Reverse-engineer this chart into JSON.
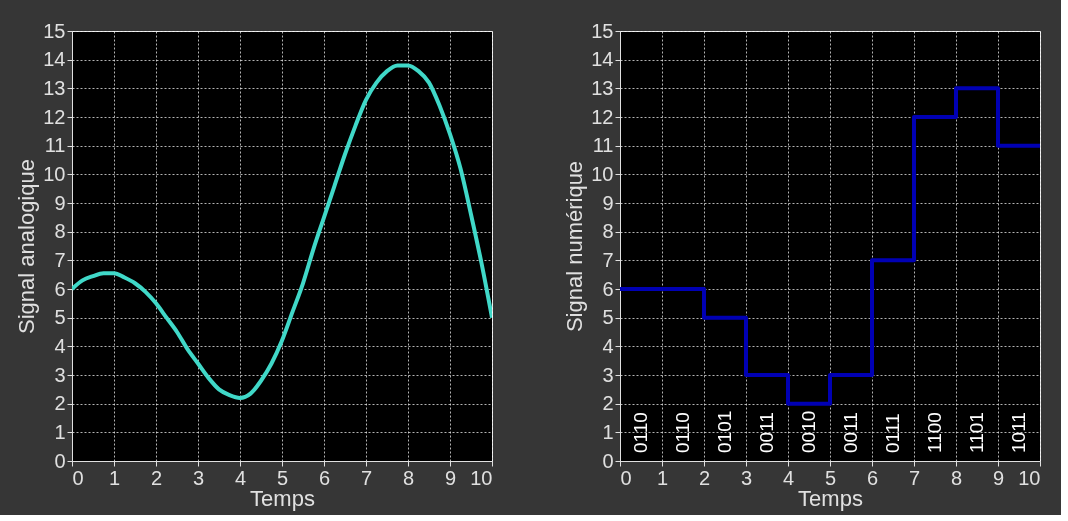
{
  "chart_data": [
    {
      "type": "line",
      "xlabel": "Temps",
      "ylabel": "Signal analogique",
      "xlim": [
        0,
        10
      ],
      "ylim": [
        0,
        15
      ],
      "xticks": [
        0,
        1,
        2,
        3,
        4,
        5,
        6,
        7,
        8,
        9,
        10
      ],
      "yticks": [
        0,
        1,
        2,
        3,
        4,
        5,
        6,
        7,
        8,
        9,
        10,
        11,
        12,
        13,
        14,
        15
      ],
      "grid": true,
      "series": [
        {
          "color": "#40d8c8",
          "x": [
            0,
            0.25,
            0.5,
            0.75,
            1,
            1.25,
            1.5,
            1.75,
            2,
            2.25,
            2.5,
            2.75,
            3,
            3.25,
            3.5,
            3.75,
            4,
            4.25,
            4.5,
            4.75,
            5,
            5.25,
            5.5,
            5.75,
            6,
            6.25,
            6.5,
            6.75,
            7,
            7.25,
            7.5,
            7.75,
            8,
            8.25,
            8.5,
            8.75,
            9,
            9.25,
            9.5,
            9.75,
            10
          ],
          "values": [
            6.0,
            6.3,
            6.45,
            6.55,
            6.55,
            6.4,
            6.2,
            5.9,
            5.5,
            5.0,
            4.5,
            3.9,
            3.4,
            2.9,
            2.5,
            2.3,
            2.2,
            2.35,
            2.8,
            3.4,
            4.2,
            5.2,
            6.2,
            7.4,
            8.5,
            9.6,
            10.7,
            11.7,
            12.6,
            13.2,
            13.6,
            13.8,
            13.8,
            13.6,
            13.2,
            12.4,
            11.4,
            10.2,
            8.6,
            6.9,
            5.0
          ]
        }
      ]
    },
    {
      "type": "step",
      "xlabel": "Temps",
      "ylabel": "Signal numérique",
      "xlim": [
        0,
        10
      ],
      "ylim": [
        0,
        15
      ],
      "xticks": [
        0,
        1,
        2,
        3,
        4,
        5,
        6,
        7,
        8,
        9,
        10
      ],
      "yticks": [
        0,
        1,
        2,
        3,
        4,
        5,
        6,
        7,
        8,
        9,
        10,
        11,
        12,
        13,
        14,
        15
      ],
      "grid": true,
      "series": [
        {
          "color": "#0000b4",
          "x": [
            0,
            1,
            2,
            3,
            4,
            5,
            6,
            7,
            8,
            9,
            10
          ],
          "values": [
            6,
            6,
            5,
            3,
            2,
            3,
            7,
            12,
            13,
            11,
            11
          ]
        }
      ],
      "annotations": [
        "0110",
        "0110",
        "0101",
        "0011",
        "0010",
        "0011",
        "0111",
        "1100",
        "1101",
        "1011"
      ]
    }
  ]
}
